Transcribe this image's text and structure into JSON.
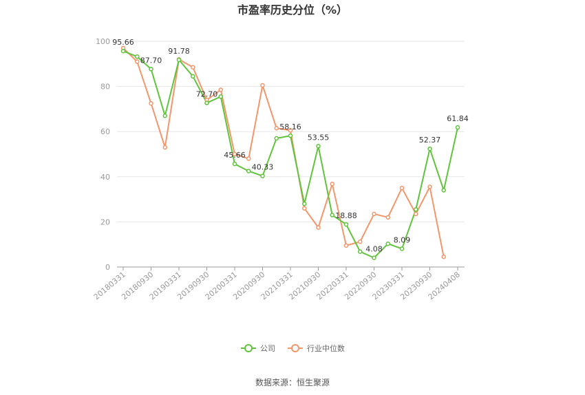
{
  "chart_data": {
    "type": "line",
    "title": "市盈率历史分位（%）",
    "xlabel": "",
    "ylabel": "",
    "ylim": [
      0,
      100
    ],
    "yticks": [
      0,
      20,
      40,
      60,
      80,
      100
    ],
    "grid": true,
    "legend_position": "bottom",
    "x": [
      "20180331",
      "20180630",
      "20180930",
      "20181231",
      "20190331",
      "20190630",
      "20190930",
      "20191231",
      "20200331",
      "20200630",
      "20200930",
      "20201231",
      "20210331",
      "20210630",
      "20210930",
      "20211231",
      "20220331",
      "20220630",
      "20220930",
      "20221231",
      "20230331",
      "20230630",
      "20230930",
      "20231231",
      "20240408"
    ],
    "x_tick_labels": [
      "20180331",
      "20180930",
      "20190331",
      "20190930",
      "20200331",
      "20200930",
      "20210331",
      "20210930",
      "20220331",
      "20220930",
      "20230331",
      "20230930",
      "20240408"
    ],
    "series": [
      {
        "name": "公司",
        "color": "#5ec43a",
        "values": [
          95.66,
          93.2,
          87.7,
          67.0,
          91.78,
          84.5,
          72.7,
          75.5,
          45.66,
          42.5,
          40.33,
          57.0,
          58.16,
          28.0,
          53.55,
          23.0,
          18.88,
          6.8,
          4.08,
          10.3,
          8.09,
          25.5,
          52.37,
          34.0,
          61.84
        ]
      },
      {
        "name": "行业中位数",
        "color": "#f4956a",
        "values": [
          97.0,
          91.0,
          72.5,
          53.0,
          92.0,
          88.5,
          74.0,
          78.5,
          50.0,
          48.0,
          80.5,
          61.5,
          60.5,
          26.0,
          17.5,
          36.8,
          9.5,
          11.2,
          23.5,
          22.0,
          35.0,
          23.5,
          35.5,
          4.5,
          null
        ]
      }
    ],
    "data_labels": [
      {
        "series": 0,
        "index": 0,
        "text": "95.66"
      },
      {
        "series": 0,
        "index": 2,
        "text": "87.70"
      },
      {
        "series": 0,
        "index": 4,
        "text": "91.78"
      },
      {
        "series": 0,
        "index": 6,
        "text": "72.70"
      },
      {
        "series": 0,
        "index": 8,
        "text": "45.66"
      },
      {
        "series": 0,
        "index": 10,
        "text": "40.33"
      },
      {
        "series": 0,
        "index": 12,
        "text": "58.16"
      },
      {
        "series": 0,
        "index": 14,
        "text": "53.55"
      },
      {
        "series": 0,
        "index": 16,
        "text": "18.88"
      },
      {
        "series": 0,
        "index": 18,
        "text": "4.08"
      },
      {
        "series": 0,
        "index": 20,
        "text": "8.09"
      },
      {
        "series": 0,
        "index": 22,
        "text": "52.37"
      },
      {
        "series": 0,
        "index": 24,
        "text": "61.84"
      }
    ]
  },
  "source": "数据来源：恒生聚源"
}
